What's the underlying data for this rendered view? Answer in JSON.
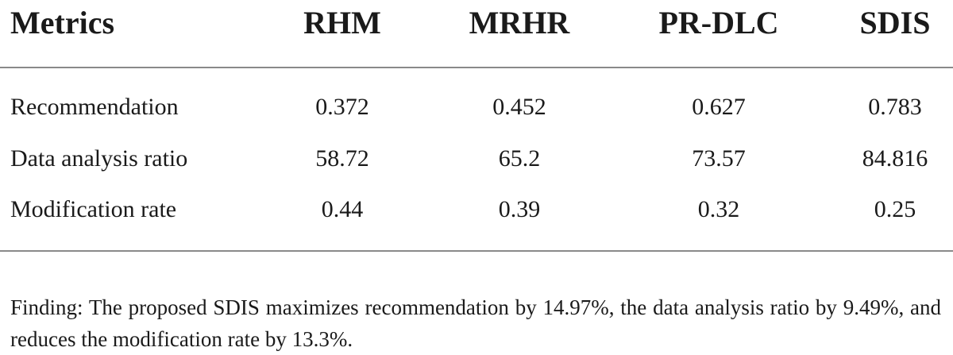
{
  "table": {
    "headers": [
      "Metrics",
      "RHM",
      "MRHR",
      "PR-DLC",
      "SDIS"
    ],
    "rows": [
      {
        "metric": "Recommendation",
        "values": [
          "0.372",
          "0.452",
          "0.627",
          "0.783"
        ]
      },
      {
        "metric": "Data analysis ratio",
        "values": [
          "58.72",
          "65.2",
          "73.57",
          "84.816"
        ]
      },
      {
        "metric": "Modification rate",
        "values": [
          "0.44",
          "0.39",
          "0.32",
          "0.25"
        ]
      }
    ]
  },
  "footnote": "Finding: The proposed SDIS maximizes recommendation by 14.97%, the data analysis ratio by 9.49%, and reduces the modification rate by 13.3%."
}
